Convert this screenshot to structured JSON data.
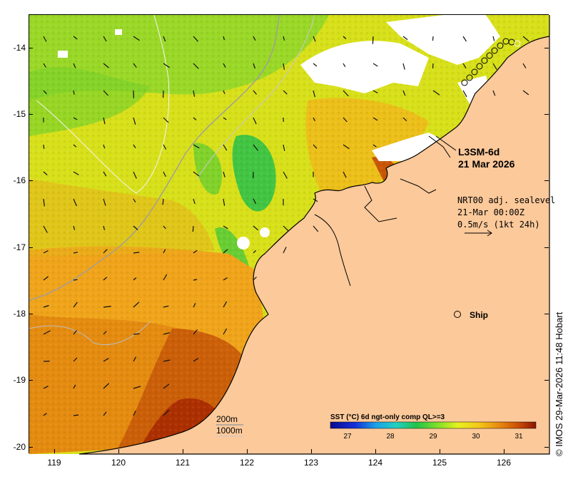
{
  "product": {
    "title": "L3SM-6d",
    "date": "21 Mar 2026"
  },
  "current_info": {
    "line1": "NRT00 adj. sealevel",
    "line2": "21-Mar 00:00Z",
    "line3": "0.5m/s (1kt 24h)"
  },
  "ship_label": "Ship",
  "contours": {
    "shallow": "200m",
    "deep": "1000m"
  },
  "colorbar": {
    "title": "SST (°C) 6d ngt-only comp QL>=3",
    "ticks": [
      "27",
      "28",
      "29",
      "30",
      "31"
    ],
    "range": [
      26.6,
      31.4
    ]
  },
  "credit": "© IMOS 29-Mar-2026 11:48 Hobart",
  "axes": {
    "lon_ticks": [
      "119",
      "120",
      "121",
      "122",
      "123",
      "124",
      "125",
      "126"
    ],
    "lat_ticks": [
      "-14",
      "-15",
      "-16",
      "-17",
      "-18",
      "-19",
      "-20"
    ],
    "lon_range": [
      118.6,
      126.7
    ],
    "lat_range": [
      -20.1,
      -13.5
    ]
  },
  "colors": {
    "land": "#fcc99a",
    "cloud": "#ffffff",
    "warm": "#b02a00",
    "cool": "#22c24a"
  }
}
